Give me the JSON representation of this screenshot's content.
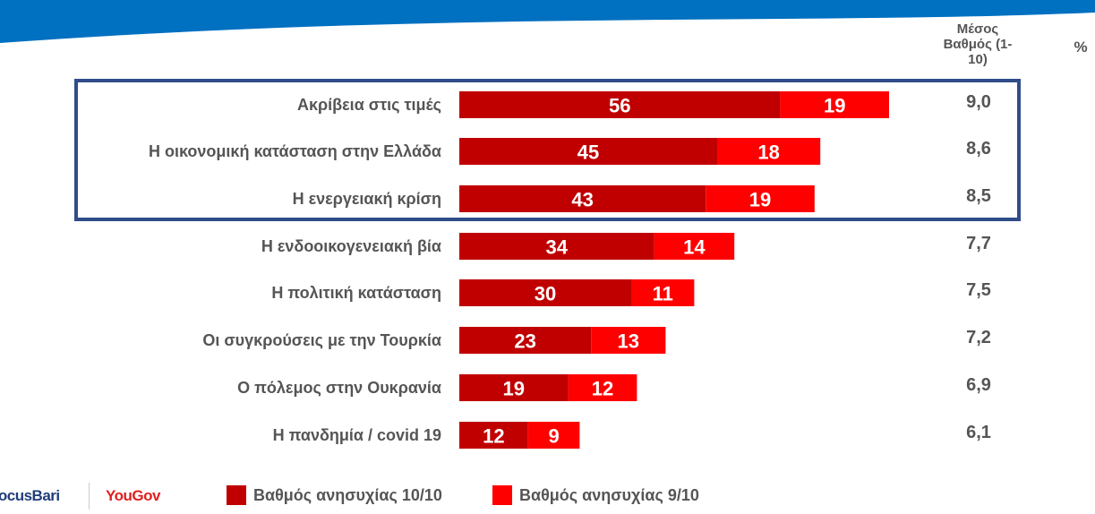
{
  "header": {
    "avg_score_label": "Μέσος Βαθμός (1-10)",
    "percent_label": "%"
  },
  "chart_data": {
    "type": "bar",
    "stacked": true,
    "orientation": "horizontal",
    "categories": [
      "Ακρίβεια στις τιμές",
      "Η οικονομική κατάσταση στην Ελλάδα",
      "Η ενεργειακή κρίση",
      "Η ενδοοικογενειακή βία",
      "Η πολιτική κατάσταση",
      "Οι συγκρούσεις με την Τουρκία",
      "Ο πόλεμος στην Ουκρανία",
      "Η πανδημία / covid 19"
    ],
    "series": [
      {
        "name": "Βαθμός ανησυχίας 10/10",
        "color": "#c00000",
        "values": [
          56,
          45,
          43,
          34,
          30,
          23,
          19,
          12
        ]
      },
      {
        "name": "Βαθμός ανησυχίας 9/10",
        "color": "#ff0000",
        "values": [
          19,
          18,
          19,
          14,
          11,
          13,
          12,
          9
        ]
      }
    ],
    "average_scores": [
      "9,0",
      "8,6",
      "8,5",
      "7,7",
      "7,5",
      "7,2",
      "6,9",
      "6,1"
    ],
    "highlighted_categories": [
      "Ακρίβεια στις τιμές",
      "Η οικονομική κατάσταση στην Ελλάδα",
      "Η ενεργειακή κρίση"
    ],
    "legend_position": "bottom"
  },
  "footer": {
    "logo_focusbari": "FocusBari",
    "logo_yougov": "YouGov"
  },
  "colors": {
    "band": "#0070c0",
    "highlight_box": "#2f4d8a",
    "text": "#555555"
  }
}
